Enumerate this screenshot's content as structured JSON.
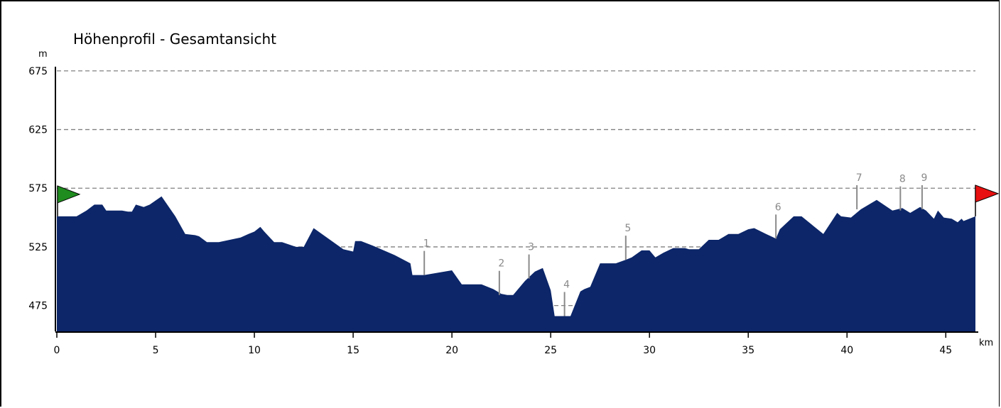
{
  "chart_data": {
    "type": "area",
    "title": "Höhenprofil - Gesamtansicht",
    "xlabel": "km",
    "ylabel": "m",
    "xlim": [
      0,
      46.5
    ],
    "ylim": [
      453,
      687
    ],
    "x_ticks": [
      0,
      5,
      10,
      15,
      20,
      25,
      30,
      35,
      40,
      45
    ],
    "y_ticks": [
      475,
      525,
      575,
      625,
      675
    ],
    "grid": "horizontal dashed",
    "fill_color": "#0c2669",
    "start_flag_color": "#1e8c1e",
    "end_flag_color": "#e81010",
    "series": [
      {
        "x": [
          0,
          1,
          1.5,
          1.9,
          2.3,
          2.5,
          3.3,
          3.6,
          3.8,
          4.0,
          4.4,
          4.7,
          5.3,
          6.0,
          6.5,
          7.0,
          7.2,
          7.6,
          8.2,
          9.3,
          9.7,
          10.0,
          10.3,
          10.5,
          11.0,
          11.4,
          12.1,
          12.5,
          13.0,
          14.5,
          15.0,
          15.1,
          15.4,
          16.0,
          17.1,
          17.9,
          18.0,
          18.6,
          20.0,
          20.5,
          21.2,
          21.5,
          22.1,
          22.5,
          22.8,
          23.1,
          23.7,
          24.2,
          24.6,
          25.0,
          25.2,
          25.6,
          26.0,
          26.5,
          26.7,
          27.0,
          27.5,
          28.3,
          28.8,
          29.1,
          29.6,
          30.0,
          30.3,
          30.7,
          31.2,
          31.8,
          32.0,
          32.5,
          33.0,
          33.5,
          34.0,
          34.5,
          35.0,
          35.3,
          35.9,
          36.4,
          36.6,
          37.3,
          37.7,
          38.8,
          39.5,
          39.7,
          40.2,
          40.7,
          41.5,
          42.3,
          42.8,
          43.2,
          43.7,
          44.0,
          44.4,
          44.6,
          44.9,
          45.3,
          45.6,
          45.8,
          45.9,
          46.5
        ],
        "y": [
          551,
          551,
          556,
          561,
          561,
          556,
          556,
          555,
          555,
          561,
          559,
          561,
          568,
          551,
          536,
          535,
          534,
          529,
          529,
          533,
          536,
          538,
          542,
          538,
          529,
          529,
          525,
          525,
          541,
          523,
          521,
          530,
          530,
          526,
          518,
          511,
          501,
          501,
          505,
          493,
          493,
          493,
          489,
          485,
          484,
          484,
          496,
          504,
          507,
          488,
          466,
          466,
          466,
          487,
          489,
          491,
          511,
          511,
          514,
          516,
          522,
          522,
          516,
          520,
          524,
          524,
          523,
          523,
          531,
          531,
          536,
          536,
          540,
          541,
          536,
          532,
          540,
          551,
          551,
          536,
          554,
          551,
          550,
          557,
          565,
          556,
          558,
          554,
          559,
          556,
          549,
          556,
          550,
          549,
          546,
          549,
          547,
          551
        ]
      }
    ],
    "waypoints": [
      {
        "label": "1",
        "x": 18.6,
        "y": 501
      },
      {
        "label": "2",
        "x": 22.4,
        "y": 484
      },
      {
        "label": "3",
        "x": 23.9,
        "y": 498
      },
      {
        "label": "4",
        "x": 25.7,
        "y": 466
      },
      {
        "label": "5",
        "x": 28.8,
        "y": 514
      },
      {
        "label": "6",
        "x": 36.4,
        "y": 532
      },
      {
        "label": "7",
        "x": 40.5,
        "y": 557
      },
      {
        "label": "8",
        "x": 42.7,
        "y": 556
      },
      {
        "label": "9",
        "x": 43.8,
        "y": 557
      }
    ]
  }
}
